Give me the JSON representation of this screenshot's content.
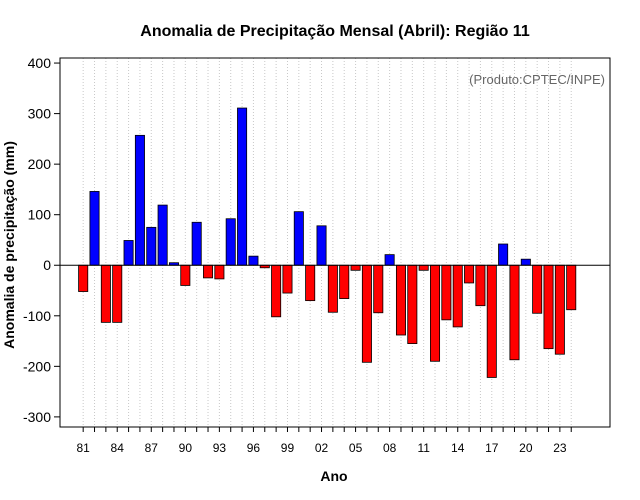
{
  "chart_data": {
    "type": "bar",
    "title": "Anomalia de Precipitação Mensal (Abril): Região 11",
    "xlabel": "Ano",
    "ylabel": "Anomalia de precipitação (mm)",
    "annotation": "(Produto:CPTEC/INPE)",
    "ylim": [
      -320,
      410
    ],
    "yticks": [
      -300,
      -200,
      -100,
      0,
      100,
      200,
      300,
      400
    ],
    "ytick_labels": [
      "-300",
      "-200",
      "-100",
      "0",
      "100",
      "200",
      "300",
      "400"
    ],
    "xtick_labels": [
      "81",
      "84",
      "87",
      "90",
      "93",
      "96",
      "99",
      "02",
      "05",
      "08",
      "11",
      "14",
      "17",
      "20",
      "23"
    ],
    "xtick_every": 3,
    "grid": true,
    "categories": [
      "81",
      "82",
      "83",
      "84",
      "85",
      "86",
      "87",
      "88",
      "89",
      "90",
      "91",
      "92",
      "93",
      "94",
      "95",
      "96",
      "97",
      "98",
      "99",
      "00",
      "01",
      "02",
      "03",
      "04",
      "05",
      "06",
      "07",
      "08",
      "09",
      "10",
      "11",
      "12",
      "13",
      "14",
      "15",
      "16",
      "17",
      "18",
      "19",
      "20",
      "21",
      "22",
      "23",
      "24"
    ],
    "values": [
      -52,
      146,
      -113,
      -113,
      49,
      257,
      75,
      119,
      5,
      -40,
      85,
      -25,
      -27,
      92,
      311,
      18,
      -5,
      -102,
      -55,
      106,
      -70,
      78,
      -93,
      -66,
      -10,
      -192,
      -94,
      21,
      -138,
      -155,
      -10,
      -190,
      -108,
      -122,
      -35,
      -80,
      -222,
      42,
      -187,
      12,
      -95,
      -165,
      -176,
      -88
    ],
    "colors": {
      "positive": "#0000ff",
      "negative": "#ff0000",
      "outline": "#000000",
      "grid": "#c8c8c8",
      "zero_line": "#000000"
    }
  }
}
